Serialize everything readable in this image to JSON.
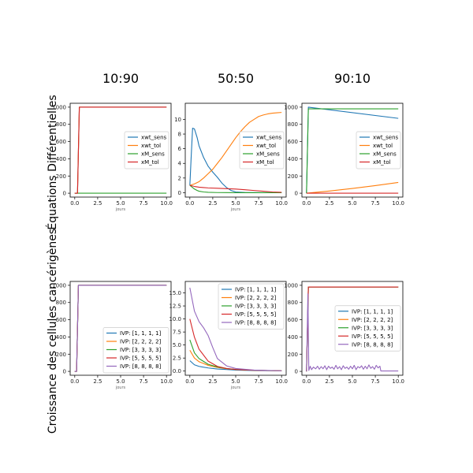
{
  "figure": {
    "row_labels": [
      "Équations Différentielles",
      "Croissance des cellules cancérigènes"
    ]
  },
  "chart_data": [
    {
      "type": "line",
      "row": 0,
      "col": 0,
      "title": "10:90",
      "xlabel": "jours",
      "ylabel": "",
      "xlim": [
        -0.5,
        10.5
      ],
      "ylim": [
        -45,
        1045
      ],
      "xticks": [
        0.0,
        2.5,
        5.0,
        7.5,
        10.0
      ],
      "xtick_labels": [
        "0.0",
        "2.5",
        "5.0",
        "7.5",
        "10.0"
      ],
      "yticks": [
        0,
        200,
        400,
        600,
        800,
        1000
      ],
      "ytick_labels": [
        "0",
        "200",
        "400",
        "600",
        "800",
        "1000"
      ],
      "legend_position": "center-right",
      "series": [
        {
          "name": "xwt_sens",
          "color": "#1f77b4",
          "x": [
            0,
            0.3,
            0.5,
            10
          ],
          "y": [
            0,
            0,
            1000,
            1000
          ]
        },
        {
          "name": "xwt_tol",
          "color": "#ff7f0e",
          "x": [
            0,
            0.3,
            0.5,
            10
          ],
          "y": [
            0,
            0,
            1000,
            1000
          ]
        },
        {
          "name": "xM_sens",
          "color": "#2ca02c",
          "x": [
            0,
            10
          ],
          "y": [
            0,
            0
          ]
        },
        {
          "name": "xM_tol",
          "color": "#d62728",
          "x": [
            0,
            0.3,
            0.5,
            10
          ],
          "y": [
            0,
            0,
            1000,
            1000
          ]
        }
      ]
    },
    {
      "type": "line",
      "row": 0,
      "col": 1,
      "title": "50:50",
      "xlabel": "jours",
      "ylabel": "",
      "xlim": [
        -0.5,
        10.5
      ],
      "ylim": [
        -0.6,
        12.2
      ],
      "xticks": [
        0.0,
        2.5,
        5.0,
        7.5,
        10.0
      ],
      "xtick_labels": [
        "0.0",
        "2.5",
        "5.0",
        "7.5",
        "10.0"
      ],
      "yticks": [
        0,
        2,
        4,
        6,
        8,
        10
      ],
      "ytick_labels": [
        "0",
        "2",
        "4",
        "6",
        "8",
        "10"
      ],
      "legend_position": "center-right",
      "series": [
        {
          "name": "xwt_sens",
          "color": "#1f77b4",
          "x": [
            0,
            0.15,
            0.3,
            0.5,
            0.8,
            1.0,
            1.5,
            2.0,
            2.5,
            3.0,
            3.5,
            4.0,
            4.5,
            5.0,
            6.0,
            7.0,
            8.0,
            9.0,
            10.0
          ],
          "y": [
            1.0,
            5.0,
            8.8,
            8.7,
            7.5,
            6.4,
            4.8,
            3.6,
            2.8,
            2.1,
            1.3,
            0.7,
            0.3,
            0.1,
            0.03,
            0.01,
            0.0,
            0.0,
            0.0
          ]
        },
        {
          "name": "xwt_tol",
          "color": "#ff7f0e",
          "x": [
            0,
            0.5,
            1.0,
            1.5,
            2.0,
            2.5,
            3.0,
            3.5,
            4.0,
            4.5,
            5.0,
            5.5,
            6.0,
            6.5,
            7.0,
            7.5,
            8.0,
            8.5,
            9.0,
            9.5,
            10.0
          ],
          "y": [
            1.0,
            1.2,
            1.5,
            2.0,
            2.6,
            3.2,
            4.0,
            4.8,
            5.7,
            6.6,
            7.5,
            8.3,
            9.0,
            9.6,
            10.0,
            10.4,
            10.6,
            10.75,
            10.85,
            10.9,
            10.95
          ]
        },
        {
          "name": "xM_sens",
          "color": "#2ca02c",
          "x": [
            0,
            0.2,
            0.5,
            0.8,
            1.0,
            1.5,
            2.0,
            3.0,
            4.0,
            5.0,
            10.0
          ],
          "y": [
            1.0,
            0.8,
            0.5,
            0.3,
            0.2,
            0.1,
            0.05,
            0.02,
            0.01,
            0.0,
            0.0
          ]
        },
        {
          "name": "xM_tol",
          "color": "#d62728",
          "x": [
            0,
            0.5,
            1.0,
            1.5,
            2.0,
            3.0,
            4.0,
            5.0,
            6.0,
            7.0,
            8.0,
            9.0,
            10.0
          ],
          "y": [
            1.0,
            0.85,
            0.75,
            0.7,
            0.65,
            0.6,
            0.55,
            0.5,
            0.4,
            0.3,
            0.2,
            0.1,
            0.05
          ]
        }
      ]
    },
    {
      "type": "line",
      "row": 0,
      "col": 2,
      "title": "90:10",
      "xlabel": "",
      "ylabel": "",
      "xlim": [
        -0.5,
        10.5
      ],
      "ylim": [
        -45,
        1045
      ],
      "xticks": [
        0.0,
        2.5,
        5.0,
        7.5,
        10.0
      ],
      "xtick_labels": [
        "0.0",
        "2.5",
        "5.0",
        "7.5",
        "10.0"
      ],
      "yticks": [
        0,
        200,
        400,
        600,
        800,
        1000
      ],
      "ytick_labels": [
        "0",
        "200",
        "400",
        "600",
        "800",
        "1000"
      ],
      "legend_position": "center-right",
      "series": [
        {
          "name": "xwt_sens",
          "color": "#1f77b4",
          "x": [
            0,
            0.2,
            10
          ],
          "y": [
            0,
            1000,
            870
          ]
        },
        {
          "name": "xwt_tol",
          "color": "#ff7f0e",
          "x": [
            0,
            2.5,
            5.0,
            7.5,
            10
          ],
          "y": [
            0,
            25,
            55,
            88,
            125
          ]
        },
        {
          "name": "xM_sens",
          "color": "#2ca02c",
          "x": [
            0,
            0.2,
            10
          ],
          "y": [
            0,
            980,
            980
          ]
        },
        {
          "name": "xM_tol",
          "color": "#d62728",
          "x": [
            0,
            10
          ],
          "y": [
            0,
            0
          ]
        }
      ]
    },
    {
      "type": "line",
      "row": 1,
      "col": 0,
      "title": "",
      "xlabel": "jours",
      "ylabel": "",
      "xlim": [
        -0.5,
        10.5
      ],
      "ylim": [
        -45,
        1045
      ],
      "xticks": [
        0.0,
        2.5,
        5.0,
        7.5,
        10.0
      ],
      "xtick_labels": [
        "0.0",
        "2.5",
        "5.0",
        "7.5",
        "10.0"
      ],
      "yticks": [
        0,
        200,
        400,
        600,
        800,
        1000
      ],
      "ytick_labels": [
        "0",
        "200",
        "400",
        "600",
        "800",
        "1000"
      ],
      "legend_position": "lower-right",
      "series": [
        {
          "name": "IVP: [1, 1, 1, 1]",
          "color": "#1f77b4",
          "x": [
            0,
            0.2,
            0.4,
            10
          ],
          "y": [
            0,
            0,
            1000,
            1000
          ]
        },
        {
          "name": "IVP: [2, 2, 2, 2]",
          "color": "#ff7f0e",
          "x": [
            0,
            0.2,
            0.4,
            10
          ],
          "y": [
            0,
            0,
            1000,
            1000
          ]
        },
        {
          "name": "IVP: [3, 3, 3, 3]",
          "color": "#2ca02c",
          "x": [
            0,
            0.2,
            0.4,
            10
          ],
          "y": [
            0,
            0,
            1000,
            1000
          ]
        },
        {
          "name": "IVP: [5, 5, 5, 5]",
          "color": "#d62728",
          "x": [
            0,
            0.2,
            0.4,
            10
          ],
          "y": [
            0,
            0,
            1000,
            1000
          ]
        },
        {
          "name": "IVP: [8, 8, 8, 8]",
          "color": "#9467bd",
          "x": [
            0,
            0.2,
            0.4,
            10
          ],
          "y": [
            0,
            0,
            1000,
            1000
          ]
        }
      ]
    },
    {
      "type": "line",
      "row": 1,
      "col": 1,
      "title": "",
      "xlabel": "jours",
      "ylabel": "",
      "xlim": [
        -0.5,
        10.5
      ],
      "ylim": [
        -0.8,
        17.2
      ],
      "xticks": [
        0.0,
        2.5,
        5.0,
        7.5,
        10.0
      ],
      "xtick_labels": [
        "0.0",
        "2.5",
        "5.0",
        "7.5",
        "10.0"
      ],
      "yticks": [
        0.0,
        2.5,
        5.0,
        7.5,
        10.0,
        12.5,
        15.0
      ],
      "ytick_labels": [
        "0.0",
        "2.5",
        "5.0",
        "7.5",
        "10.0",
        "12.5",
        "15.0"
      ],
      "legend_position": "top-right",
      "series": [
        {
          "name": "IVP: [1, 1, 1, 1]",
          "color": "#1f77b4",
          "x": [
            0,
            0.5,
            1,
            2,
            3,
            4,
            5,
            7,
            10
          ],
          "y": [
            2,
            1.2,
            0.9,
            0.6,
            0.4,
            0.3,
            0.2,
            0.1,
            0.05
          ]
        },
        {
          "name": "IVP: [2, 2, 2, 2]",
          "color": "#ff7f0e",
          "x": [
            0,
            0.5,
            1,
            2,
            3,
            4,
            5,
            7,
            10
          ],
          "y": [
            4,
            2.5,
            1.8,
            1.1,
            0.7,
            0.45,
            0.3,
            0.15,
            0.05
          ]
        },
        {
          "name": "IVP: [3, 3, 3, 3]",
          "color": "#2ca02c",
          "x": [
            0,
            0.5,
            1,
            2,
            3,
            4,
            5,
            7,
            10
          ],
          "y": [
            6,
            3.5,
            2.4,
            1.3,
            0.8,
            0.5,
            0.3,
            0.15,
            0.05
          ]
        },
        {
          "name": "IVP: [5, 5, 5, 5]",
          "color": "#d62728",
          "x": [
            0,
            0.5,
            1,
            2,
            3,
            4,
            5,
            7,
            10
          ],
          "y": [
            10,
            6.5,
            4.2,
            1.9,
            0.9,
            0.5,
            0.3,
            0.15,
            0.05
          ]
        },
        {
          "name": "IVP: [8, 8, 8, 8]",
          "color": "#9467bd",
          "x": [
            0,
            0.5,
            1,
            1.5,
            2,
            2.5,
            3,
            4,
            5,
            7,
            10
          ],
          "y": [
            16,
            11.5,
            9.5,
            8.3,
            6.8,
            4.5,
            2.4,
            1.0,
            0.5,
            0.2,
            0.05
          ]
        }
      ]
    },
    {
      "type": "line",
      "row": 1,
      "col": 2,
      "title": "",
      "xlabel": "",
      "ylabel": "",
      "xlim": [
        -0.5,
        10.5
      ],
      "ylim": [
        -45,
        1045
      ],
      "xticks": [
        0.0,
        2.5,
        5.0,
        7.5,
        10.0
      ],
      "xtick_labels": [
        "0.0",
        "2.5",
        "5.0",
        "7.5",
        "10.0"
      ],
      "yticks": [
        0,
        200,
        400,
        600,
        800,
        1000
      ],
      "ytick_labels": [
        "0",
        "200",
        "400",
        "600",
        "800",
        "1000"
      ],
      "legend_position": "center-right",
      "series": [
        {
          "name": "IVP: [1, 1, 1, 1]",
          "color": "#1f77b4",
          "x": [
            0,
            0.2,
            10
          ],
          "y": [
            0,
            980,
            980
          ]
        },
        {
          "name": "IVP: [2, 2, 2, 2]",
          "color": "#ff7f0e",
          "x": [
            0,
            0.2,
            10
          ],
          "y": [
            0,
            980,
            980
          ]
        },
        {
          "name": "IVP: [3, 3, 3, 3]",
          "color": "#2ca02c",
          "x": [
            0,
            0.2,
            10
          ],
          "y": [
            0,
            980,
            980
          ]
        },
        {
          "name": "IVP: [5, 5, 5, 5]",
          "color": "#d62728",
          "x": [
            0,
            0.2,
            10
          ],
          "y": [
            0,
            980,
            980
          ]
        },
        {
          "name": "IVP: [8, 8, 8, 8]",
          "color": "#9467bd",
          "x": [
            0,
            0.15,
            0.25,
            0.4,
            0.55,
            0.75,
            1.0,
            1.2,
            1.4,
            1.6,
            1.8,
            2.0,
            2.2,
            2.4,
            2.6,
            2.8,
            3.0,
            3.2,
            3.4,
            3.6,
            3.8,
            4.0,
            4.2,
            4.4,
            4.6,
            4.8,
            5.0,
            5.2,
            5.4,
            5.6,
            5.8,
            6.0,
            6.2,
            6.4,
            6.6,
            6.8,
            7.0,
            7.2,
            7.4,
            7.6,
            7.8,
            8.0,
            8.1,
            8.5,
            10.0
          ],
          "y": [
            0,
            900,
            10,
            60,
            20,
            50,
            30,
            60,
            25,
            55,
            30,
            65,
            20,
            60,
            35,
            50,
            25,
            70,
            30,
            55,
            20,
            65,
            35,
            50,
            25,
            60,
            30,
            70,
            20,
            55,
            40,
            65,
            25,
            60,
            30,
            75,
            35,
            55,
            25,
            70,
            40,
            60,
            5,
            5,
            5
          ]
        }
      ]
    }
  ]
}
